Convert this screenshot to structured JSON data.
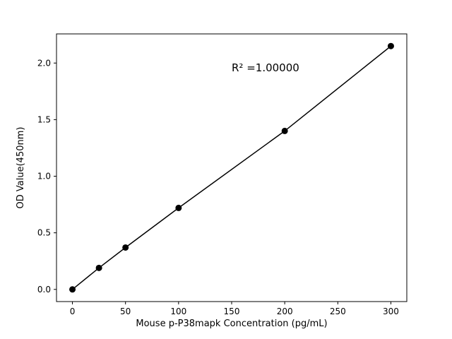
{
  "chart_data": {
    "type": "line",
    "title": "",
    "xlabel": "Mouse p-P38mapk Concentration (pg/mL)",
    "ylabel": "OD Value(450nm)",
    "annotation": "R² =1.00000",
    "x": [
      0,
      25,
      50,
      100,
      200,
      300
    ],
    "y": [
      0.0,
      0.19,
      0.37,
      0.72,
      1.4,
      2.15
    ],
    "xlim": [
      -15,
      315
    ],
    "ylim": [
      -0.1075,
      2.2575
    ],
    "xticks": [
      0,
      50,
      100,
      150,
      200,
      250,
      300
    ],
    "xtick_labels": [
      "0",
      "50",
      "100",
      "150",
      "200",
      "250",
      "300"
    ],
    "yticks": [
      0,
      0.5,
      1.0,
      1.5,
      2.0
    ],
    "ytick_labels": [
      "0.0",
      "0.5",
      "1.0",
      "1.5",
      "2.0"
    ],
    "line_color": "#000000",
    "marker_color": "#000000",
    "background_color": "#ffffff",
    "grid": false,
    "legend": null
  }
}
